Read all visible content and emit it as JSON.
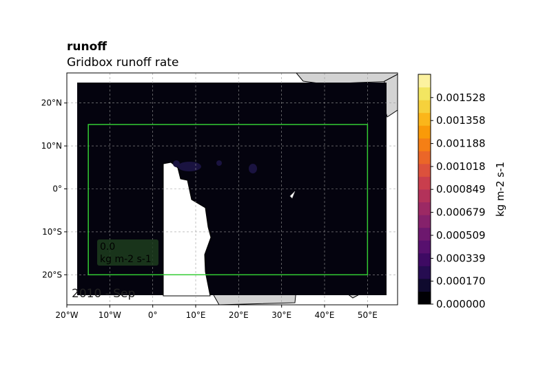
{
  "chart_data": {
    "type": "heatmap",
    "title": "runoff",
    "subtitle": "Gridbox runoff rate",
    "xlabel": "",
    "ylabel": "",
    "xlim": [
      -20,
      57
    ],
    "ylim": [
      -27,
      27
    ],
    "x_ticks": [
      -20,
      -10,
      0,
      10,
      20,
      30,
      40,
      50
    ],
    "x_tick_labels": [
      "20°W",
      "10°W",
      "0°",
      "10°E",
      "20°E",
      "30°E",
      "40°E",
      "50°E"
    ],
    "y_ticks": [
      20,
      10,
      0,
      -10,
      -20
    ],
    "y_tick_labels": [
      "20°N",
      "10°N",
      "0°",
      "10°S",
      "20°S"
    ],
    "grid": true,
    "data_extent": {
      "lon": [
        -18,
        55
      ],
      "lat": [
        -25,
        25
      ]
    },
    "data_value_dominant": 0.0,
    "masked_region_note": "",
    "region_box": {
      "lon": [
        -15,
        50
      ],
      "lat": [
        -20,
        15
      ],
      "color": "#33cc33"
    },
    "annotation": {
      "value": "0.0",
      "units": "kg m-2 s-1"
    },
    "time_label": "2010 - Sep",
    "colorbar": {
      "label": "kg m-2 s-1",
      "min": 0.0,
      "max": 0.0017,
      "tick_values": [
        0.0,
        0.00017,
        0.000339,
        0.000509,
        0.000679,
        0.000849,
        0.001018,
        0.001188,
        0.001358,
        0.001528
      ],
      "tick_labels": [
        "0.000000",
        "0.000170",
        "0.000339",
        "0.000509",
        "0.000679",
        "0.000849",
        "0.001018",
        "0.001188",
        "0.001358",
        "0.001528"
      ],
      "colormap": "inferno",
      "colors": [
        "#000004",
        "#0f0a2e",
        "#260c51",
        "#3e0a63",
        "#57106e",
        "#6d186e",
        "#85216b",
        "#9c2964",
        "#b3325a",
        "#c93e4d",
        "#dc513c",
        "#eb6628",
        "#f57f15",
        "#fa9a08",
        "#fbb61a",
        "#f6d13c",
        "#f2e661",
        "#fcf2a0"
      ]
    },
    "land_color": "#d3d3d3",
    "ocean_fill_color": "#04030e"
  }
}
